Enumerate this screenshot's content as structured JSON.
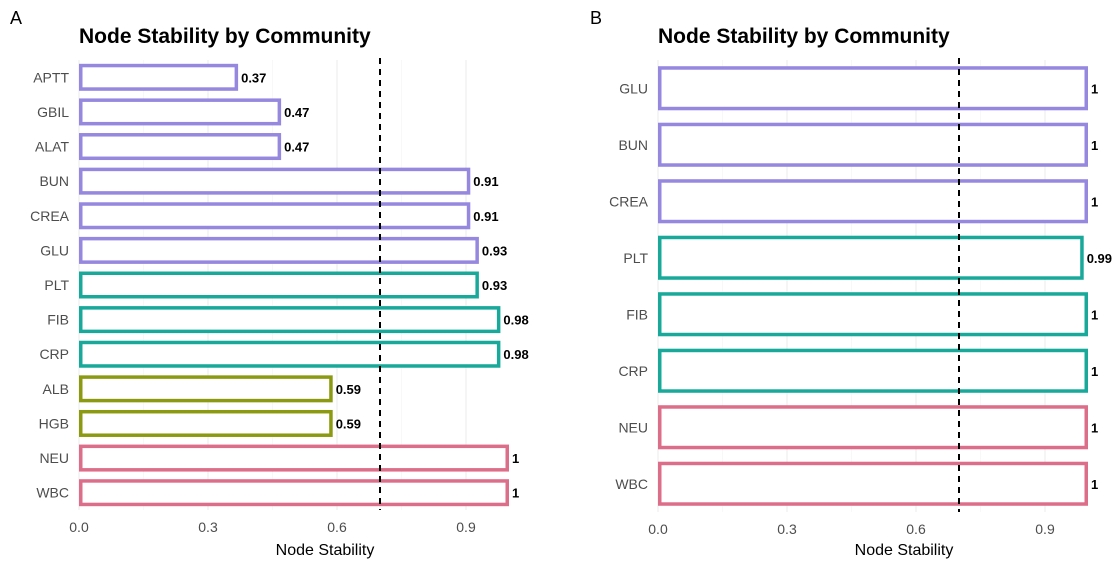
{
  "colors": {
    "community_purple": "#9687df",
    "community_teal": "#18a99a",
    "community_olive": "#8b9a10",
    "community_pink": "#dd6e8a",
    "threshold_line": "#000000",
    "grid": "#ebebeb"
  },
  "chart_data": [
    {
      "panel": "A",
      "type": "bar",
      "orientation": "horizontal",
      "title": "Node Stability by Community",
      "xlabel": "Node Stability",
      "ylabel": "",
      "xlim": [
        0,
        1.0
      ],
      "xticks": [
        0.0,
        0.3,
        0.6,
        0.9
      ],
      "xtick_labels": [
        "0.0",
        "0.3",
        "0.6",
        "0.9"
      ],
      "threshold": 0.7,
      "grid": true,
      "legend": "none",
      "categories": [
        "APTT",
        "GBIL",
        "ALAT",
        "BUN",
        "CREA",
        "GLU",
        "PLT",
        "FIB",
        "CRP",
        "ALB",
        "HGB",
        "NEU",
        "WBC"
      ],
      "values": [
        0.37,
        0.47,
        0.47,
        0.91,
        0.91,
        0.93,
        0.93,
        0.98,
        0.98,
        0.59,
        0.59,
        1.0,
        1.0
      ],
      "value_labels": [
        "0.37",
        "0.47",
        "0.47",
        "0.91",
        "0.91",
        "0.93",
        "0.93",
        "0.98",
        "0.98",
        "0.59",
        "0.59",
        "1",
        "1"
      ],
      "bar_colors": [
        "#9687df",
        "#9687df",
        "#9687df",
        "#9687df",
        "#9687df",
        "#9687df",
        "#18a99a",
        "#18a99a",
        "#18a99a",
        "#8b9a10",
        "#8b9a10",
        "#dd6e8a",
        "#dd6e8a"
      ]
    },
    {
      "panel": "B",
      "type": "bar",
      "orientation": "horizontal",
      "title": "Node Stability by Community",
      "xlabel": "Node Stability",
      "ylabel": "",
      "xlim": [
        0,
        1.0
      ],
      "xticks": [
        0.0,
        0.3,
        0.6,
        0.9
      ],
      "xtick_labels": [
        "0.0",
        "0.3",
        "0.6",
        "0.9"
      ],
      "threshold": 0.7,
      "grid": true,
      "legend": "none",
      "categories": [
        "GLU",
        "BUN",
        "CREA",
        "PLT",
        "FIB",
        "CRP",
        "NEU",
        "WBC"
      ],
      "values": [
        1.0,
        1.0,
        1.0,
        0.99,
        1.0,
        1.0,
        1.0,
        1.0
      ],
      "value_labels": [
        "1",
        "1",
        "1",
        "0.99",
        "1",
        "1",
        "1",
        "1"
      ],
      "bar_colors": [
        "#9687df",
        "#9687df",
        "#9687df",
        "#18a99a",
        "#18a99a",
        "#18a99a",
        "#dd6e8a",
        "#dd6e8a"
      ]
    }
  ]
}
